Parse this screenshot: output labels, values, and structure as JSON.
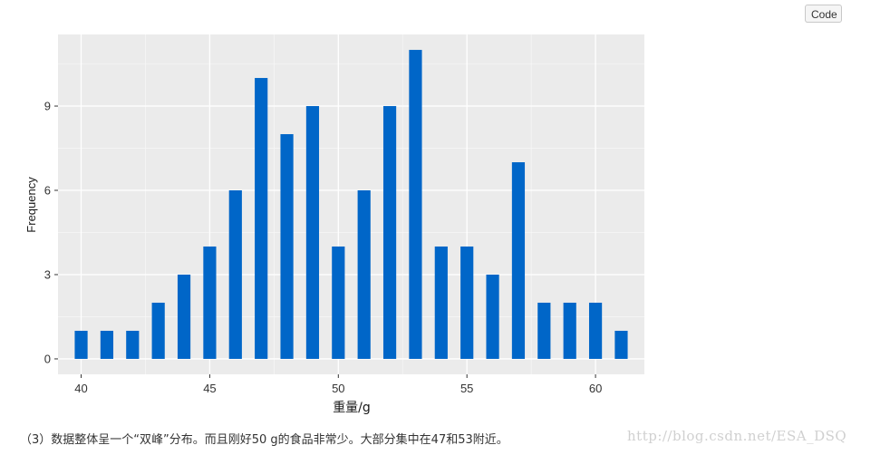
{
  "toolbar": {
    "code_label": "Code"
  },
  "chart_data": {
    "type": "bar",
    "x": [
      40,
      41,
      42,
      43,
      44,
      45,
      46,
      47,
      48,
      49,
      50,
      51,
      52,
      53,
      54,
      55,
      56,
      57,
      58,
      59,
      60,
      61
    ],
    "values": [
      1,
      1,
      1,
      2,
      3,
      4,
      6,
      10,
      8,
      9,
      4,
      6,
      9,
      11,
      4,
      4,
      3,
      7,
      2,
      2,
      2,
      1
    ],
    "xlabel": "重量/g",
    "ylabel": "Frequency",
    "xticks": [
      40,
      45,
      50,
      55,
      60
    ],
    "yticks": [
      0,
      3,
      6,
      9
    ],
    "xlim": [
      39.1,
      61.9
    ],
    "ylim": [
      -0.55,
      11.55
    ],
    "grid": true,
    "bar_color": "#0066c8",
    "panel_color": "#ebebeb"
  },
  "caption": "（3）数据整体呈一个“双峰”分布。而且刚好50 g的食品非常少。大部分集中在47和53附近。",
  "watermark": "http://blog.csdn.net/ESA_DSQ"
}
